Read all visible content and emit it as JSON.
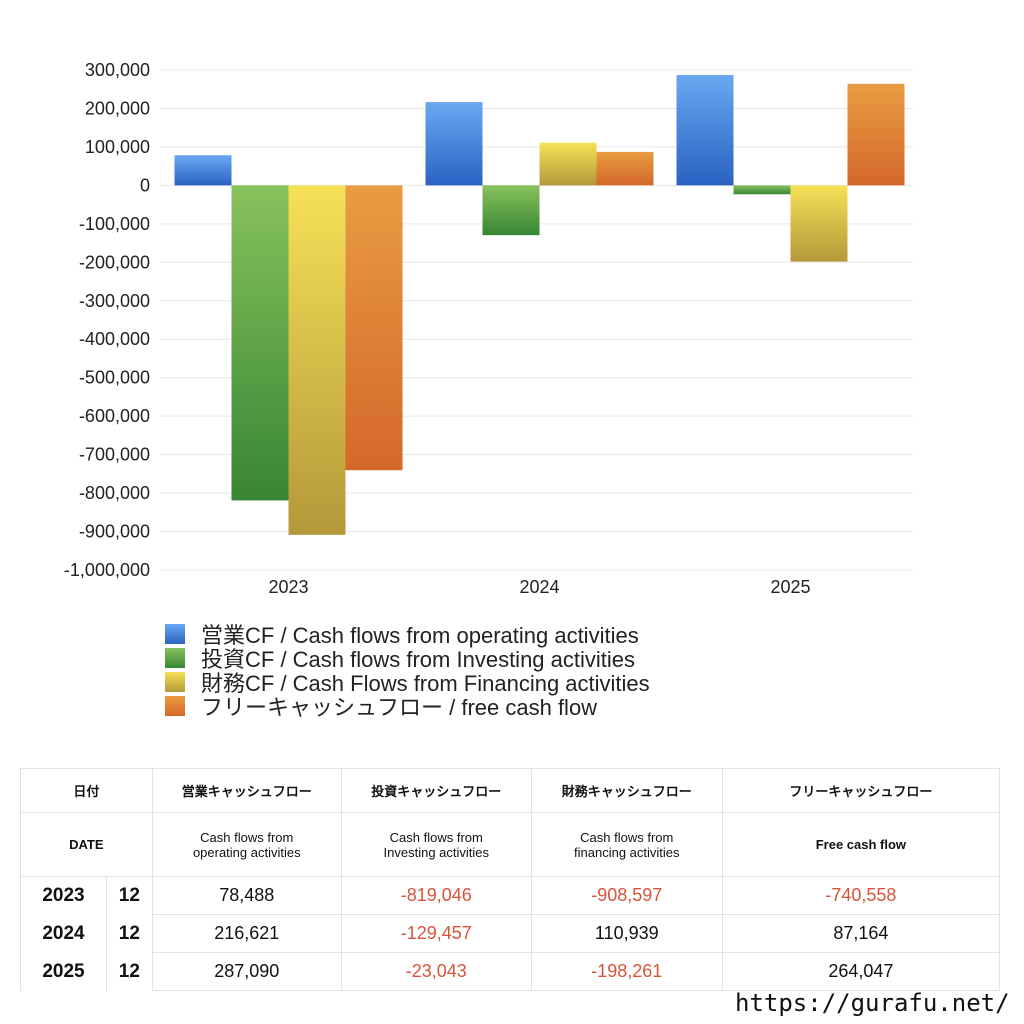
{
  "chart_data": {
    "type": "bar",
    "categories": [
      "2023",
      "2024",
      "2025"
    ],
    "series": [
      {
        "name": "営業CF / Cash flows from operating activities",
        "values": [
          78488,
          216621,
          287090
        ],
        "color_top": "#6aa8f2",
        "color_bottom": "#2b62c2"
      },
      {
        "name": "投資CF / Cash flows from Investing activities",
        "values": [
          -819046,
          -129457,
          -23043
        ],
        "color_top": "#88c25c",
        "color_bottom": "#378634"
      },
      {
        "name": "財務CF / Cash Flows from Financing activities",
        "values": [
          -908597,
          110939,
          -198261
        ],
        "color_top": "#f6e157",
        "color_bottom": "#b5983a"
      },
      {
        "name": "フリーキャッシュフロー / free cash flow",
        "values": [
          -740558,
          87164,
          264047
        ],
        "color_top": "#e99c42",
        "color_bottom": "#d4682a"
      }
    ],
    "ylim": [
      -1000000,
      300000
    ],
    "yticks": [
      "300,000",
      "200,000",
      "100,000",
      "0",
      "-100,000",
      "-200,000",
      "-300,000",
      "-400,000",
      "-500,000",
      "-600,000",
      "-700,000",
      "-800,000",
      "-900,000",
      "-1,000,000"
    ],
    "grid": true,
    "legend": "bottom"
  },
  "table": {
    "header_jp": {
      "date": "日付",
      "op": "営業キャッシュフロー",
      "inv": "投資キャッシュフロー",
      "fin": "財務キャッシュフロー",
      "free": "フリーキャッシュフロー"
    },
    "header_en": {
      "date": "DATE",
      "op": "Cash flows from operating activities",
      "inv": "Cash flows from Investing activities",
      "fin": "Cash flows from financing activities",
      "free": "Free cash flow"
    },
    "rows": [
      {
        "year": "2023",
        "month": "12",
        "op": "78,488",
        "inv": "-819,046",
        "fin": "-908,597",
        "free": "-740,558"
      },
      {
        "year": "2024",
        "month": "12",
        "op": "216,621",
        "inv": "-129,457",
        "fin": "110,939",
        "free": "87,164"
      },
      {
        "year": "2025",
        "month": "12",
        "op": "287,090",
        "inv": "-23,043",
        "fin": "-198,261",
        "free": "264,047"
      }
    ],
    "negative_color": "#d9533a"
  },
  "footer": {
    "url": "https://gurafu.net/"
  }
}
